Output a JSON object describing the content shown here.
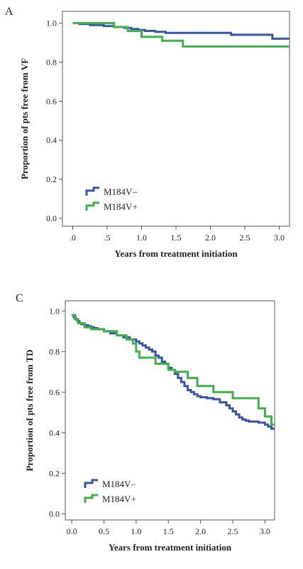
{
  "colors": {
    "m184v_neg": "#3b55a6",
    "m184v_pos": "#3fb24a",
    "axis": "#555555"
  },
  "chart_data": [
    {
      "panel": "A",
      "type": "line",
      "step": true,
      "xlabel": "Years from treatment initiation",
      "ylabel": "Proportion of pts free from VF",
      "xlim": [
        -0.15,
        3.15
      ],
      "ylim": [
        -0.04,
        1.06
      ],
      "xticks": [
        0,
        0.5,
        1,
        1.5,
        2,
        2.5,
        3
      ],
      "xtick_labels": [
        ".0",
        ".5",
        "1.0",
        "1.5",
        "2.0",
        "2.5",
        "3.0"
      ],
      "yticks": [
        0,
        0.2,
        0.4,
        0.6,
        0.8,
        1
      ],
      "ytick_labels": [
        "0.0",
        "0.2",
        "0.4",
        "0.6",
        "0.8",
        "1.0"
      ],
      "legend": "bottom-left",
      "grid": false,
      "series": [
        {
          "name": "M184V–",
          "color": "#3b55a6",
          "x": [
            0,
            0.1,
            0.25,
            0.45,
            0.6,
            0.75,
            0.85,
            0.95,
            1.05,
            1.2,
            1.35,
            2.3,
            2.9,
            3.15
          ],
          "y": [
            1.0,
            0.995,
            0.99,
            0.985,
            0.98,
            0.975,
            0.97,
            0.965,
            0.96,
            0.955,
            0.95,
            0.94,
            0.92,
            0.92
          ]
        },
        {
          "name": "M184V+",
          "color": "#3fb24a",
          "x": [
            0,
            0.6,
            0.8,
            1.0,
            1.3,
            1.6,
            3.15
          ],
          "y": [
            1.0,
            0.98,
            0.96,
            0.93,
            0.91,
            0.88,
            0.88
          ]
        }
      ]
    },
    {
      "panel": "C",
      "type": "line",
      "step": true,
      "xlabel": "Years from treatment initiation",
      "ylabel": "Proportion of pts free from TD",
      "xlim": [
        -0.1,
        3.15
      ],
      "ylim": [
        -0.03,
        1.05
      ],
      "xticks": [
        0,
        0.5,
        1,
        1.5,
        2,
        2.5,
        3
      ],
      "xtick_labels": [
        "0.0",
        "0.5",
        "1.0",
        "1.5",
        "2.0",
        "2.5",
        "3.0"
      ],
      "yticks": [
        0,
        0.2,
        0.4,
        0.6,
        0.8,
        1
      ],
      "ytick_labels": [
        "0.0",
        "0.2",
        "0.4",
        "0.6",
        "0.8",
        "1.0"
      ],
      "legend": "bottom-left",
      "grid": false,
      "series": [
        {
          "name": "M184V–",
          "color": "#3b55a6",
          "x": [
            0,
            0.03,
            0.06,
            0.09,
            0.12,
            0.15,
            0.2,
            0.25,
            0.3,
            0.35,
            0.4,
            0.5,
            0.6,
            0.7,
            0.8,
            0.9,
            1.0,
            1.05,
            1.1,
            1.15,
            1.2,
            1.25,
            1.3,
            1.35,
            1.4,
            1.45,
            1.5,
            1.55,
            1.6,
            1.65,
            1.7,
            1.75,
            1.8,
            1.85,
            1.9,
            1.95,
            2.0,
            2.1,
            2.2,
            2.3,
            2.4,
            2.45,
            2.5,
            2.55,
            2.6,
            2.65,
            2.7,
            2.75,
            2.8,
            2.9,
            3.0,
            3.05,
            3.1,
            3.15
          ],
          "y": [
            0.98,
            0.97,
            0.96,
            0.95,
            0.94,
            0.935,
            0.93,
            0.925,
            0.92,
            0.915,
            0.91,
            0.9,
            0.89,
            0.88,
            0.87,
            0.86,
            0.85,
            0.84,
            0.83,
            0.82,
            0.81,
            0.8,
            0.78,
            0.77,
            0.75,
            0.74,
            0.72,
            0.71,
            0.69,
            0.67,
            0.65,
            0.63,
            0.61,
            0.6,
            0.59,
            0.58,
            0.575,
            0.57,
            0.565,
            0.55,
            0.535,
            0.52,
            0.505,
            0.49,
            0.475,
            0.465,
            0.46,
            0.455,
            0.455,
            0.45,
            0.44,
            0.43,
            0.42,
            0.42
          ]
        },
        {
          "name": "M184V+",
          "color": "#3fb24a",
          "x": [
            0,
            0.05,
            0.1,
            0.2,
            0.3,
            0.5,
            0.7,
            0.85,
            0.95,
            1.0,
            1.05,
            1.3,
            1.5,
            1.6,
            1.8,
            1.95,
            2.2,
            2.5,
            2.9,
            3.0,
            3.1,
            3.15
          ],
          "y": [
            0.98,
            0.96,
            0.94,
            0.92,
            0.91,
            0.9,
            0.88,
            0.86,
            0.84,
            0.8,
            0.77,
            0.74,
            0.71,
            0.7,
            0.67,
            0.63,
            0.6,
            0.57,
            0.52,
            0.48,
            0.44,
            0.44
          ]
        }
      ]
    }
  ]
}
